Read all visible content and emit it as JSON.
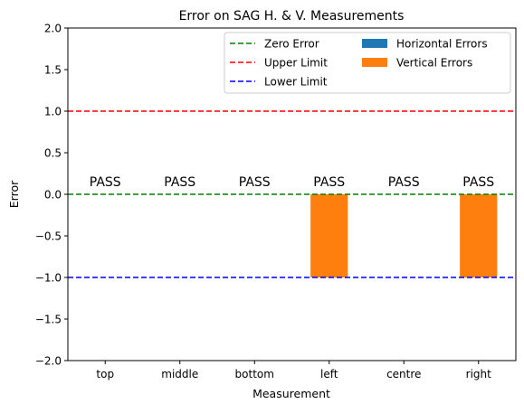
{
  "chart_data": {
    "type": "bar",
    "title": "Error on SAG H. & V. Measurements",
    "xlabel": "Measurement",
    "ylabel": "Error",
    "categories": [
      "top",
      "middle",
      "bottom",
      "left",
      "centre",
      "right"
    ],
    "ylim": [
      -2.0,
      2.0
    ],
    "yticks": [
      "2.0",
      "1.5",
      "1.0",
      "0.5",
      "0.0",
      "−0.5",
      "−1.0",
      "−1.5",
      "−2.0"
    ],
    "ytick_values": [
      2.0,
      1.5,
      1.0,
      0.5,
      0.0,
      -0.5,
      -1.0,
      -1.5,
      -2.0
    ],
    "grid": false,
    "legend_placement": "top-right",
    "reference_lines": [
      {
        "name": "Zero Error",
        "y": 0.0,
        "color": "#008000",
        "style": "dashed"
      },
      {
        "name": "Upper Limit",
        "y": 1.0,
        "color": "#ff0000",
        "style": "dashed"
      },
      {
        "name": "Lower Limit",
        "y": -1.0,
        "color": "#0000ff",
        "style": "dashed"
      }
    ],
    "series": [
      {
        "name": "Horizontal Errors",
        "color": "#1f77b4",
        "values": [
          0,
          0,
          0,
          0,
          0,
          0
        ]
      },
      {
        "name": "Vertical Errors",
        "color": "#ff7f0e",
        "values": [
          0,
          0,
          0,
          -1.0,
          0,
          -1.0
        ]
      }
    ],
    "annotations": [
      "PASS",
      "PASS",
      "PASS",
      "PASS",
      "PASS",
      "PASS"
    ]
  }
}
